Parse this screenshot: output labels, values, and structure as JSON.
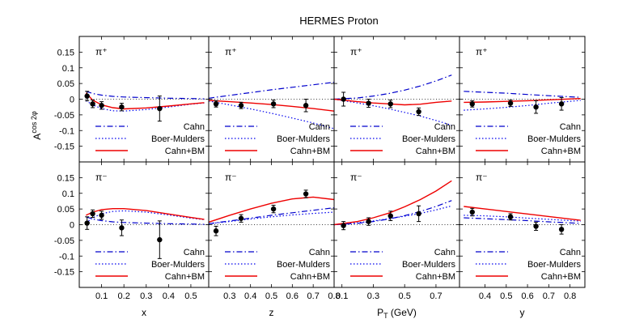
{
  "chart_data": {
    "type": "line",
    "title": "HERMES Proton",
    "ylabel_base": "A",
    "ylabel_sup": "cos 2φ",
    "ylim": [
      -0.2,
      0.2
    ],
    "yticks": [
      -0.15,
      -0.1,
      -0.05,
      0,
      0.05,
      0.1,
      0.15
    ],
    "ytick_labels": [
      "-0.15",
      "-0.1",
      "-0.05",
      "0",
      "0.05",
      "0.1",
      "0.15"
    ],
    "legend_position": "bottom-right",
    "legend": [
      {
        "name": "Cahn",
        "style": "dash-dot",
        "color": "#0000cc"
      },
      {
        "name": "Boer-Mulders",
        "style": "dotted",
        "color": "#0000ee"
      },
      {
        "name": "Cahn+BM",
        "style": "solid",
        "color": "#ee0000"
      }
    ],
    "columns": [
      {
        "xlabel": "x",
        "xlabel_sub": "",
        "xlabel_suffix": "",
        "xlim": [
          0.0,
          0.58
        ],
        "xticks": [
          0.1,
          0.2,
          0.3,
          0.4,
          0.5
        ],
        "xtick_labels": [
          "0.1",
          "0.2",
          "0.3",
          "0.4",
          "0.5"
        ]
      },
      {
        "xlabel": "z",
        "xlabel_sub": "",
        "xlabel_suffix": "",
        "xlim": [
          0.2,
          0.8
        ],
        "xticks": [
          0.3,
          0.4,
          0.5,
          0.6,
          0.7,
          0.8
        ],
        "xtick_labels": [
          "0.3",
          "0.4",
          "0.5",
          "0.6",
          "0.7",
          "0.8"
        ]
      },
      {
        "xlabel": "P",
        "xlabel_sub": "T",
        "xlabel_suffix": " (GeV)",
        "xlim": [
          0.05,
          0.85
        ],
        "xticks": [
          0.1,
          0.3,
          0.5,
          0.7
        ],
        "xtick_labels": [
          "0.1",
          "0.3",
          "0.5",
          "0.7"
        ]
      },
      {
        "xlabel": "y",
        "xlabel_sub": "",
        "xlabel_suffix": "",
        "xlim": [
          0.28,
          0.87
        ],
        "xticks": [
          0.4,
          0.5,
          0.6,
          0.7,
          0.8
        ],
        "xtick_labels": [
          "0.4",
          "0.5",
          "0.6",
          "0.7",
          "0.8"
        ]
      }
    ],
    "panels": [
      {
        "row": 0,
        "col": 0,
        "label": "π⁺",
        "points": [
          {
            "x": 0.035,
            "y": 0.01,
            "err": 0.015
          },
          {
            "x": 0.06,
            "y": -0.015,
            "err": 0.012
          },
          {
            "x": 0.1,
            "y": -0.02,
            "err": 0.012
          },
          {
            "x": 0.19,
            "y": -0.025,
            "err": 0.012
          },
          {
            "x": 0.36,
            "y": -0.03,
            "err": 0.04
          }
        ],
        "series": [
          {
            "name": "Cahn",
            "x": [
              0.03,
              0.06,
              0.1,
              0.15,
              0.2,
              0.3,
              0.4,
              0.5,
              0.56
            ],
            "y": [
              0.025,
              0.018,
              0.013,
              0.009,
              0.007,
              0.005,
              0.003,
              0.002,
              0.001
            ]
          },
          {
            "name": "Boer-Mulders",
            "x": [
              0.03,
              0.06,
              0.1,
              0.15,
              0.2,
              0.3,
              0.4,
              0.5,
              0.56
            ],
            "y": [
              -0.005,
              -0.018,
              -0.03,
              -0.037,
              -0.038,
              -0.033,
              -0.025,
              -0.016,
              -0.012
            ]
          },
          {
            "name": "Cahn+BM",
            "x": [
              0.03,
              0.06,
              0.1,
              0.15,
              0.2,
              0.3,
              0.4,
              0.5,
              0.56
            ],
            "y": [
              0.02,
              -0.003,
              -0.018,
              -0.027,
              -0.031,
              -0.028,
              -0.022,
              -0.015,
              -0.011
            ]
          }
        ]
      },
      {
        "row": 0,
        "col": 1,
        "label": "π⁺",
        "points": [
          {
            "x": 0.235,
            "y": -0.015,
            "err": 0.01
          },
          {
            "x": 0.355,
            "y": -0.02,
            "err": 0.01
          },
          {
            "x": 0.51,
            "y": -0.015,
            "err": 0.012
          },
          {
            "x": 0.665,
            "y": -0.02,
            "err": 0.02
          }
        ],
        "series": [
          {
            "name": "Cahn",
            "x": [
              0.2,
              0.3,
              0.4,
              0.5,
              0.6,
              0.7,
              0.8
            ],
            "y": [
              0.003,
              0.012,
              0.021,
              0.03,
              0.038,
              0.046,
              0.054
            ]
          },
          {
            "name": "Boer-Mulders",
            "x": [
              0.2,
              0.3,
              0.4,
              0.5,
              0.6,
              0.7,
              0.8
            ],
            "y": [
              -0.006,
              -0.018,
              -0.031,
              -0.045,
              -0.06,
              -0.076,
              -0.094
            ]
          },
          {
            "name": "Cahn+BM",
            "x": [
              0.2,
              0.3,
              0.4,
              0.5,
              0.6,
              0.7,
              0.8
            ],
            "y": [
              -0.004,
              -0.008,
              -0.012,
              -0.017,
              -0.023,
              -0.03,
              -0.038
            ]
          }
        ]
      },
      {
        "row": 0,
        "col": 2,
        "label": "π⁺",
        "points": [
          {
            "x": 0.11,
            "y": 0.0,
            "err": 0.022
          },
          {
            "x": 0.27,
            "y": -0.013,
            "err": 0.013
          },
          {
            "x": 0.41,
            "y": -0.015,
            "err": 0.012
          },
          {
            "x": 0.59,
            "y": -0.04,
            "err": 0.012
          }
        ],
        "series": [
          {
            "name": "Cahn",
            "x": [
              0.05,
              0.2,
              0.3,
              0.4,
              0.5,
              0.6,
              0.7,
              0.8
            ],
            "y": [
              0.0,
              0.004,
              0.01,
              0.018,
              0.029,
              0.042,
              0.058,
              0.077
            ]
          },
          {
            "name": "Boer-Mulders",
            "x": [
              0.05,
              0.2,
              0.3,
              0.4,
              0.5,
              0.6,
              0.7,
              0.8
            ],
            "y": [
              0.0,
              -0.012,
              -0.021,
              -0.031,
              -0.042,
              -0.054,
              -0.068,
              -0.083
            ]
          },
          {
            "name": "Cahn+BM",
            "x": [
              0.05,
              0.2,
              0.3,
              0.4,
              0.5,
              0.6,
              0.7,
              0.8
            ],
            "y": [
              0.0,
              -0.008,
              -0.012,
              -0.015,
              -0.018,
              -0.016,
              -0.01,
              -0.006
            ]
          }
        ]
      },
      {
        "row": 0,
        "col": 3,
        "label": "π⁺",
        "points": [
          {
            "x": 0.34,
            "y": -0.015,
            "err": 0.01
          },
          {
            "x": 0.52,
            "y": -0.013,
            "err": 0.01
          },
          {
            "x": 0.64,
            "y": -0.025,
            "err": 0.02
          },
          {
            "x": 0.76,
            "y": -0.015,
            "err": 0.02
          }
        ],
        "series": [
          {
            "name": "Cahn",
            "x": [
              0.3,
              0.4,
              0.5,
              0.6,
              0.7,
              0.85
            ],
            "y": [
              0.025,
              0.022,
              0.019,
              0.015,
              0.011,
              0.006
            ]
          },
          {
            "name": "Boer-Mulders",
            "x": [
              0.3,
              0.4,
              0.5,
              0.6,
              0.7,
              0.85
            ],
            "y": [
              -0.035,
              -0.031,
              -0.026,
              -0.02,
              -0.013,
              -0.004
            ]
          },
          {
            "name": "Cahn+BM",
            "x": [
              0.3,
              0.4,
              0.5,
              0.6,
              0.7,
              0.85
            ],
            "y": [
              -0.01,
              -0.009,
              -0.007,
              -0.005,
              -0.002,
              0.002
            ]
          }
        ]
      },
      {
        "row": 1,
        "col": 0,
        "label": "π⁻",
        "points": [
          {
            "x": 0.035,
            "y": 0.005,
            "err": 0.02
          },
          {
            "x": 0.06,
            "y": 0.035,
            "err": 0.012
          },
          {
            "x": 0.1,
            "y": 0.03,
            "err": 0.013
          },
          {
            "x": 0.19,
            "y": -0.01,
            "err": 0.025
          },
          {
            "x": 0.36,
            "y": -0.048,
            "err": 0.06
          }
        ],
        "series": [
          {
            "name": "Cahn",
            "x": [
              0.03,
              0.06,
              0.1,
              0.15,
              0.2,
              0.3,
              0.4,
              0.5,
              0.56
            ],
            "y": [
              0.025,
              0.018,
              0.013,
              0.009,
              0.007,
              0.005,
              0.003,
              0.002,
              0.001
            ]
          },
          {
            "name": "Boer-Mulders",
            "x": [
              0.03,
              0.06,
              0.1,
              0.15,
              0.2,
              0.3,
              0.4,
              0.5,
              0.56
            ],
            "y": [
              0.005,
              0.022,
              0.035,
              0.042,
              0.044,
              0.04,
              0.031,
              0.021,
              0.016
            ]
          },
          {
            "name": "Cahn+BM",
            "x": [
              0.03,
              0.06,
              0.1,
              0.15,
              0.2,
              0.3,
              0.4,
              0.5,
              0.56
            ],
            "y": [
              0.03,
              0.04,
              0.048,
              0.051,
              0.051,
              0.045,
              0.034,
              0.023,
              0.017
            ]
          }
        ]
      },
      {
        "row": 1,
        "col": 1,
        "label": "π⁻",
        "points": [
          {
            "x": 0.235,
            "y": -0.02,
            "err": 0.015
          },
          {
            "x": 0.355,
            "y": 0.02,
            "err": 0.012
          },
          {
            "x": 0.51,
            "y": 0.05,
            "err": 0.012
          },
          {
            "x": 0.665,
            "y": 0.098,
            "err": 0.012
          }
        ],
        "series": [
          {
            "name": "Cahn",
            "x": [
              0.2,
              0.3,
              0.4,
              0.5,
              0.6,
              0.7,
              0.8
            ],
            "y": [
              0.003,
              0.012,
              0.021,
              0.03,
              0.038,
              0.046,
              0.054
            ]
          },
          {
            "name": "Boer-Mulders",
            "x": [
              0.2,
              0.3,
              0.4,
              0.5,
              0.6,
              0.7,
              0.8
            ],
            "y": [
              0.003,
              0.01,
              0.018,
              0.025,
              0.031,
              0.036,
              0.04
            ]
          },
          {
            "name": "Cahn+BM",
            "x": [
              0.2,
              0.3,
              0.4,
              0.5,
              0.6,
              0.7,
              0.8
            ],
            "y": [
              0.008,
              0.03,
              0.05,
              0.068,
              0.082,
              0.088,
              0.08
            ]
          }
        ]
      },
      {
        "row": 1,
        "col": 2,
        "label": "π⁻",
        "points": [
          {
            "x": 0.11,
            "y": -0.003,
            "err": 0.013
          },
          {
            "x": 0.27,
            "y": 0.01,
            "err": 0.012
          },
          {
            "x": 0.41,
            "y": 0.028,
            "err": 0.015
          },
          {
            "x": 0.59,
            "y": 0.035,
            "err": 0.025
          }
        ],
        "series": [
          {
            "name": "Cahn",
            "x": [
              0.05,
              0.2,
              0.3,
              0.4,
              0.5,
              0.6,
              0.7,
              0.8
            ],
            "y": [
              0.0,
              0.004,
              0.01,
              0.018,
              0.029,
              0.042,
              0.058,
              0.077
            ]
          },
          {
            "name": "Boer-Mulders",
            "x": [
              0.05,
              0.2,
              0.3,
              0.4,
              0.5,
              0.6,
              0.7,
              0.8
            ],
            "y": [
              0.0,
              0.006,
              0.012,
              0.019,
              0.027,
              0.036,
              0.047,
              0.06
            ]
          },
          {
            "name": "Cahn+BM",
            "x": [
              0.05,
              0.2,
              0.3,
              0.4,
              0.5,
              0.6,
              0.7,
              0.8
            ],
            "y": [
              0.0,
              0.01,
              0.022,
              0.037,
              0.057,
              0.08,
              0.107,
              0.14
            ]
          }
        ]
      },
      {
        "row": 1,
        "col": 3,
        "label": "π⁻",
        "points": [
          {
            "x": 0.34,
            "y": 0.04,
            "err": 0.012
          },
          {
            "x": 0.52,
            "y": 0.025,
            "err": 0.01
          },
          {
            "x": 0.64,
            "y": -0.005,
            "err": 0.013
          },
          {
            "x": 0.76,
            "y": -0.015,
            "err": 0.015
          }
        ],
        "series": [
          {
            "name": "Cahn",
            "x": [
              0.3,
              0.4,
              0.5,
              0.6,
              0.7,
              0.85
            ],
            "y": [
              0.022,
              0.019,
              0.016,
              0.013,
              0.009,
              0.004
            ]
          },
          {
            "name": "Boer-Mulders",
            "x": [
              0.3,
              0.4,
              0.5,
              0.6,
              0.7,
              0.85
            ],
            "y": [
              0.03,
              0.028,
              0.025,
              0.021,
              0.017,
              0.011
            ]
          },
          {
            "name": "Cahn+BM",
            "x": [
              0.3,
              0.4,
              0.5,
              0.6,
              0.7,
              0.85
            ],
            "y": [
              0.058,
              0.05,
              0.042,
              0.034,
              0.026,
              0.014
            ]
          }
        ]
      }
    ]
  }
}
